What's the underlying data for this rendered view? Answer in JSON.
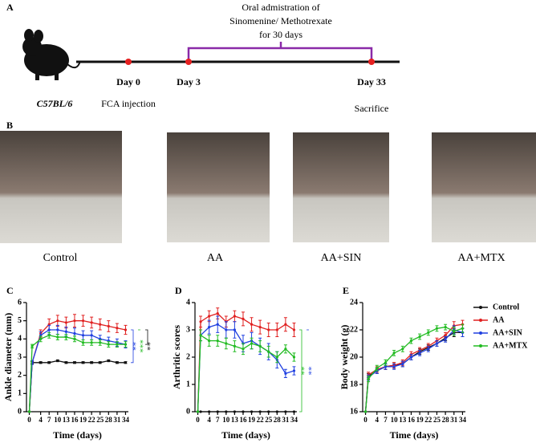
{
  "panel_a": {
    "letter": "A",
    "strain": "C57BL/6",
    "treatment_lines": [
      "Oral admistration of",
      "Sinomenine/ Methotrexate",
      "for 30 days"
    ],
    "days": [
      "Day 0",
      "Day 3",
      "Day 33"
    ],
    "events": [
      "FCA injection",
      "Sacrifice"
    ]
  },
  "panel_b": {
    "letter": "B",
    "captions": [
      "Control",
      "AA",
      "AA+SIN",
      "AA+MTX"
    ]
  },
  "chart_data": [
    {
      "type": "line",
      "letter": "C",
      "x_label": "Time (days)",
      "y_label": "Ankle diameter (mm)",
      "x": [
        0,
        1,
        4,
        7,
        10,
        13,
        16,
        19,
        22,
        25,
        28,
        31,
        34
      ],
      "xlim": [
        -1,
        35
      ],
      "xticks": [
        0,
        4,
        7,
        10,
        13,
        16,
        19,
        22,
        25,
        28,
        31,
        34
      ],
      "ylim": [
        0,
        6
      ],
      "yticks": [
        0,
        1,
        2,
        3,
        4,
        5,
        6
      ],
      "series": [
        {
          "color": "#111111",
          "values": [
            0,
            2.7,
            2.7,
            2.7,
            2.8,
            2.7,
            2.7,
            2.7,
            2.7,
            2.7,
            2.8,
            2.7,
            2.7
          ],
          "errors": [
            0,
            0.05,
            0.05,
            0.05,
            0.05,
            0.05,
            0.05,
            0.05,
            0.05,
            0.05,
            0.05,
            0.05,
            0.05
          ]
        },
        {
          "color": "#e02020",
          "values": [
            0,
            2.7,
            4.3,
            4.8,
            5.0,
            4.9,
            5.0,
            5.0,
            4.9,
            4.8,
            4.7,
            4.6,
            4.5
          ],
          "errors": [
            0,
            0.1,
            0.2,
            0.3,
            0.3,
            0.3,
            0.35,
            0.3,
            0.3,
            0.3,
            0.3,
            0.25,
            0.25
          ]
        },
        {
          "color": "#2040e0",
          "values": [
            0,
            2.7,
            4.2,
            4.5,
            4.5,
            4.4,
            4.3,
            4.2,
            4.2,
            4.0,
            3.9,
            3.8,
            3.7
          ],
          "errors": [
            0,
            0.1,
            0.2,
            0.25,
            0.25,
            0.25,
            0.3,
            0.25,
            0.25,
            0.2,
            0.2,
            0.2,
            0.2
          ]
        },
        {
          "color": "#22bb22",
          "values": [
            0,
            3.6,
            4.0,
            4.2,
            4.1,
            4.1,
            4.0,
            3.8,
            3.8,
            3.8,
            3.7,
            3.7,
            3.7
          ],
          "errors": [
            0,
            0.1,
            0.15,
            0.15,
            0.15,
            0.15,
            0.15,
            0.15,
            0.15,
            0.15,
            0.15,
            0.15,
            0.15
          ]
        }
      ],
      "annotations": [
        {
          "text": "**",
          "color": "#2040e0"
        },
        {
          "text": "***",
          "color": "#22bb22"
        },
        {
          "text": "**",
          "color": "#111111"
        }
      ]
    },
    {
      "type": "line",
      "letter": "D",
      "x_label": "Time (days)",
      "y_label": "Arthritic scores",
      "x": [
        0,
        1,
        4,
        7,
        10,
        13,
        16,
        19,
        22,
        25,
        28,
        31,
        34
      ],
      "xlim": [
        -1,
        35
      ],
      "xticks": [
        0,
        4,
        7,
        10,
        13,
        16,
        19,
        22,
        25,
        28,
        31,
        34
      ],
      "ylim": [
        0,
        4
      ],
      "yticks": [
        0,
        1,
        2,
        3,
        4
      ],
      "series": [
        {
          "color": "#111111",
          "values": [
            0,
            0,
            0,
            0,
            0,
            0,
            0,
            0,
            0,
            0,
            0,
            0,
            0
          ],
          "errors": [
            0,
            0,
            0,
            0,
            0,
            0,
            0,
            0,
            0,
            0,
            0,
            0,
            0
          ]
        },
        {
          "color": "#e02020",
          "values": [
            0,
            3.3,
            3.5,
            3.6,
            3.3,
            3.5,
            3.4,
            3.2,
            3.1,
            3.0,
            3.0,
            3.2,
            3.0
          ],
          "errors": [
            0,
            0.2,
            0.2,
            0.2,
            0.2,
            0.2,
            0.25,
            0.25,
            0.25,
            0.25,
            0.25,
            0.25,
            0.25
          ]
        },
        {
          "color": "#2040e0",
          "values": [
            0,
            2.8,
            3.1,
            3.2,
            3.0,
            3.0,
            2.5,
            2.6,
            2.4,
            2.2,
            1.9,
            1.4,
            1.5
          ],
          "errors": [
            0,
            0.2,
            0.25,
            0.3,
            0.3,
            0.3,
            0.3,
            0.3,
            0.3,
            0.3,
            0.3,
            0.15,
            0.15
          ]
        },
        {
          "color": "#22bb22",
          "values": [
            0,
            2.8,
            2.6,
            2.6,
            2.5,
            2.4,
            2.3,
            2.5,
            2.4,
            2.2,
            2.0,
            2.3,
            2.0
          ],
          "errors": [
            0,
            0.2,
            0.2,
            0.2,
            0.2,
            0.2,
            0.2,
            0.2,
            0.2,
            0.2,
            0.2,
            0.15,
            0.15
          ]
        }
      ],
      "annotations": [
        {
          "text": "**",
          "color": "#22bb22"
        },
        {
          "text": "**",
          "color": "#2040e0"
        }
      ]
    },
    {
      "type": "line",
      "letter": "E",
      "x_label": "Time (days)",
      "y_label": "Body weight (g)",
      "x": [
        0,
        1,
        4,
        7,
        10,
        13,
        16,
        19,
        22,
        25,
        28,
        31,
        34
      ],
      "xlim": [
        -1,
        35
      ],
      "xticks": [
        0,
        4,
        7,
        10,
        13,
        16,
        19,
        22,
        25,
        28,
        31,
        34
      ],
      "ylim": [
        16,
        24
      ],
      "yticks": [
        16,
        18,
        20,
        22,
        24
      ],
      "legend": "right",
      "series": [
        {
          "name": "Control",
          "color": "#111111",
          "values": [
            16,
            18.6,
            19.0,
            19.3,
            19.4,
            19.5,
            20.0,
            20.4,
            20.7,
            21.0,
            21.4,
            21.8,
            21.8
          ],
          "errors": [
            0,
            0.2,
            0.2,
            0.2,
            0.2,
            0.2,
            0.2,
            0.2,
            0.2,
            0.2,
            0.2,
            0.3,
            0.3
          ]
        },
        {
          "name": "AA",
          "color": "#e02020",
          "values": [
            16,
            18.7,
            19.1,
            19.3,
            19.4,
            19.6,
            20.2,
            20.5,
            20.8,
            21.2,
            21.6,
            22.3,
            22.4
          ],
          "errors": [
            0,
            0.2,
            0.2,
            0.2,
            0.2,
            0.2,
            0.2,
            0.2,
            0.2,
            0.2,
            0.2,
            0.3,
            0.3
          ]
        },
        {
          "name": "AA+SIN",
          "color": "#2040e0",
          "values": [
            16,
            18.5,
            19.0,
            19.3,
            19.3,
            19.5,
            20.0,
            20.3,
            20.6,
            21.0,
            21.3,
            22.0,
            21.8
          ],
          "errors": [
            0,
            0.2,
            0.2,
            0.2,
            0.2,
            0.2,
            0.2,
            0.2,
            0.2,
            0.2,
            0.2,
            0.3,
            0.3
          ]
        },
        {
          "name": "AA+MTX",
          "color": "#22bb22",
          "values": [
            16,
            18.4,
            19.2,
            19.6,
            20.3,
            20.6,
            21.2,
            21.5,
            21.8,
            22.1,
            22.2,
            21.9,
            22.1
          ],
          "errors": [
            0,
            0.2,
            0.2,
            0.2,
            0.2,
            0.2,
            0.2,
            0.2,
            0.2,
            0.2,
            0.2,
            0.3,
            0.3
          ]
        }
      ]
    }
  ]
}
